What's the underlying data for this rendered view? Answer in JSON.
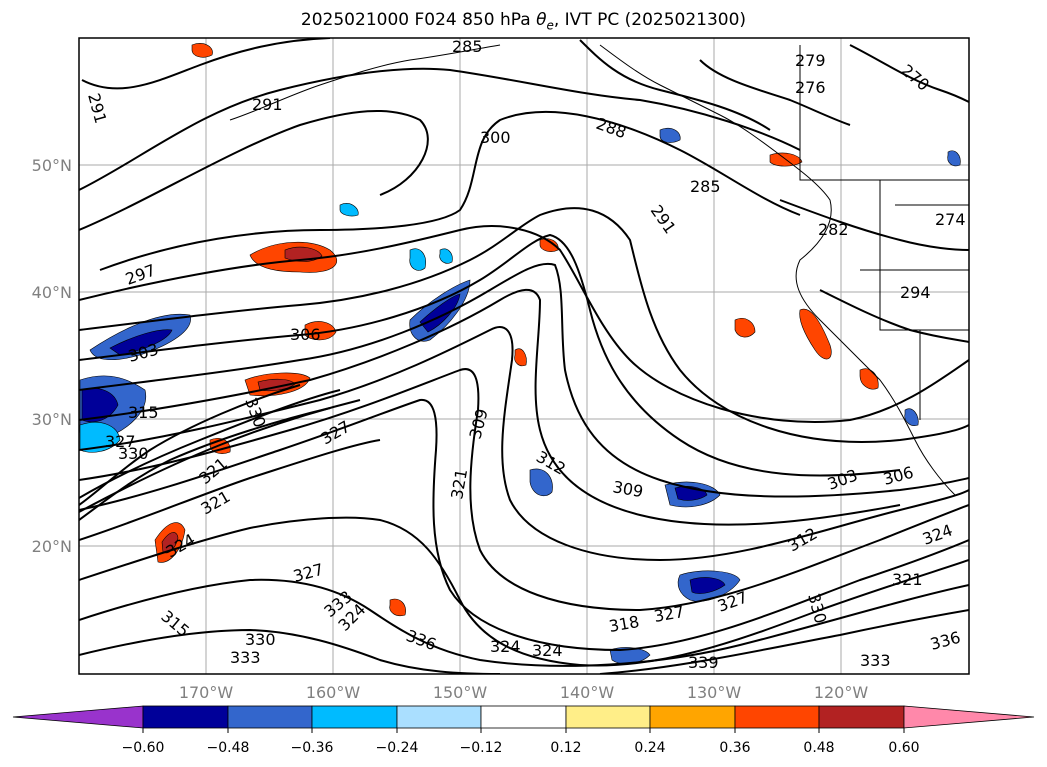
{
  "title_prefix": "2025021000 F024 850 hPa ",
  "title_symbol": "θ",
  "title_subscript": "e",
  "title_suffix": ", IVT PC (2025021300)",
  "lat_labels": [
    "50°N",
    "40°N",
    "30°N",
    "20°N"
  ],
  "lon_labels": [
    "170°W",
    "160°W",
    "150°W",
    "140°W",
    "130°W",
    "120°W"
  ],
  "colorbar": {
    "ticks": [
      "−0.60",
      "−0.48",
      "−0.36",
      "−0.24",
      "−0.12",
      "0.12",
      "0.24",
      "0.36",
      "0.48",
      "0.60"
    ],
    "colors": {
      "under": "#9933cc",
      "c1": "#000099",
      "c2": "#3366cc",
      "c3": "#00bbff",
      "c4": "#aadfff",
      "mid": "#ffffff",
      "c6": "#ffee88",
      "c7": "#ffa500",
      "c8": "#ff4500",
      "c9": "#b22222",
      "over": "#ff88aa"
    }
  },
  "contour_labels": [
    "291",
    "291",
    "300",
    "288",
    "285",
    "279",
    "276",
    "270",
    "297",
    "291",
    "282",
    "274",
    "294",
    "306",
    "303",
    "315",
    "327",
    "330",
    "330",
    "327",
    "321",
    "309",
    "312",
    "321",
    "309",
    "303",
    "306",
    "324",
    "321",
    "336",
    "333",
    "339",
    "336",
    "330",
    "333",
    "324",
    "324",
    "318",
    "327",
    "327",
    "324",
    "321",
    "327",
    "330",
    "333",
    "324",
    "315",
    "312",
    "285"
  ]
}
